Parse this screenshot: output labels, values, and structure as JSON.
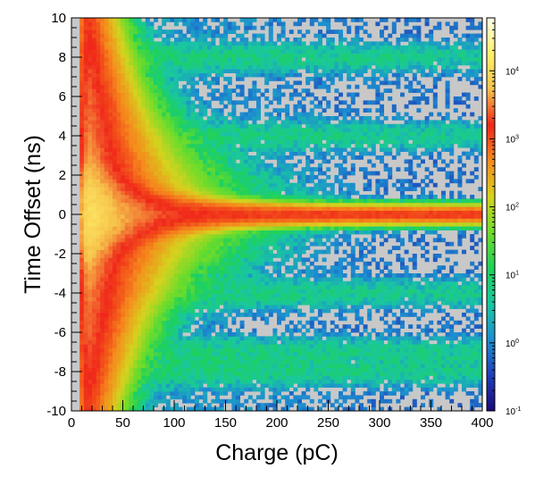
{
  "chart_data": {
    "type": "heatmap",
    "title": "",
    "xlabel": "Charge (pC)",
    "ylabel": "Time Offset (ns)",
    "xlim": [
      0,
      400
    ],
    "ylim": [
      -10,
      10
    ],
    "x_ticks": [
      "0",
      "50",
      "100",
      "150",
      "200",
      "250",
      "300",
      "350",
      "400"
    ],
    "y_ticks": [
      "-10",
      "-8",
      "-6",
      "-4",
      "-2",
      "0",
      "2",
      "4",
      "6",
      "8",
      "10"
    ],
    "z_scale": "log",
    "zlim": [
      0.1,
      60000
    ],
    "colorbar_ticks": [
      {
        "value": 0.1,
        "base": "10",
        "exp": "-1"
      },
      {
        "value": 1,
        "base": "10",
        "exp": "0"
      },
      {
        "value": 10,
        "base": "10",
        "exp": "1"
      },
      {
        "value": 100,
        "base": "10",
        "exp": "2"
      },
      {
        "value": 1000,
        "base": "10",
        "exp": "3"
      },
      {
        "value": 10000,
        "base": "10",
        "exp": "4"
      }
    ],
    "colormap": [
      "#1a0a7a",
      "#1f3fb8",
      "#1d8fd0",
      "#19c7a0",
      "#1fd15a",
      "#6fdc2a",
      "#d6d21e",
      "#f58a1c",
      "#f0261a",
      "#f6c24a",
      "#fff06a",
      "#fffde8"
    ],
    "empty_bin_color": "#c8c8c8",
    "features": {
      "ridge_time_offset_ns": 0,
      "side_band_time_offsets_ns": [
        8,
        4,
        -4,
        -7,
        -8
      ],
      "peak_charge_pC": 18
    }
  }
}
